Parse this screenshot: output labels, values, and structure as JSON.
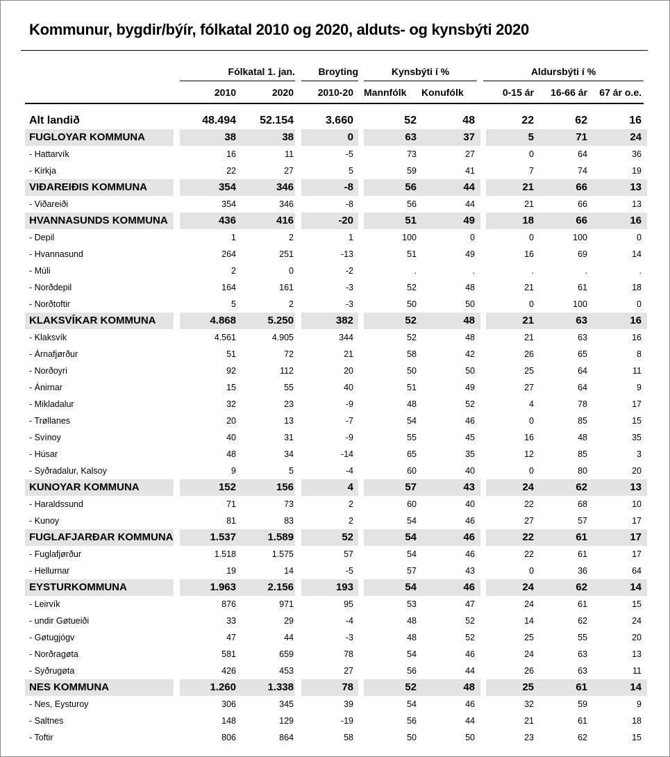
{
  "title": "Kommunur, bygdir/býír, fólkatal 2010 og 2020, alduts- og kynsbýti 2020",
  "header": {
    "groups": {
      "folkatal": "Fólkatal 1. jan.",
      "broyting": "Broyting",
      "kynsbyti": "Kynsbýti í %",
      "aldursbyti": "Aldursbýti í %"
    },
    "columns": [
      "2010",
      "2020",
      "2010-20",
      "Mannfólk",
      "Konufólk",
      "0-15 ár",
      "16-66 ár",
      "67 ár o.e."
    ]
  },
  "rows": [
    {
      "type": "total",
      "label": "Alt landið",
      "values": [
        "48.494",
        "52.154",
        "3.660",
        "52",
        "48",
        "22",
        "62",
        "16"
      ]
    },
    {
      "type": "muni",
      "label": "FUGLOYAR KOMMUNA",
      "values": [
        "38",
        "38",
        "0",
        "63",
        "37",
        "5",
        "71",
        "24"
      ]
    },
    {
      "type": "place",
      "label": "- Hattarvík",
      "values": [
        "16",
        "11",
        "-5",
        "73",
        "27",
        "0",
        "64",
        "36"
      ]
    },
    {
      "type": "place",
      "label": "- Kirkja",
      "values": [
        "22",
        "27",
        "5",
        "59",
        "41",
        "7",
        "74",
        "19"
      ]
    },
    {
      "type": "muni",
      "label": "VIÐAREIÐIS KOMMUNA",
      "values": [
        "354",
        "346",
        "-8",
        "56",
        "44",
        "21",
        "66",
        "13"
      ]
    },
    {
      "type": "place",
      "label": "- Viðareiði",
      "values": [
        "354",
        "346",
        "-8",
        "56",
        "44",
        "21",
        "66",
        "13"
      ]
    },
    {
      "type": "muni",
      "label": "HVANNASUNDS KOMMUNA",
      "values": [
        "436",
        "416",
        "-20",
        "51",
        "49",
        "18",
        "66",
        "16"
      ]
    },
    {
      "type": "place",
      "label": "- Depil",
      "values": [
        "1",
        "2",
        "1",
        "100",
        "0",
        "0",
        "100",
        "0"
      ]
    },
    {
      "type": "place",
      "label": "- Hvannasund",
      "values": [
        "264",
        "251",
        "-13",
        "51",
        "49",
        "16",
        "69",
        "14"
      ]
    },
    {
      "type": "place",
      "label": "- Múli",
      "values": [
        "2",
        "0",
        "-2",
        ".",
        ".",
        ".",
        ".",
        "."
      ]
    },
    {
      "type": "place",
      "label": "- Norðdepil",
      "values": [
        "164",
        "161",
        "-3",
        "52",
        "48",
        "21",
        "61",
        "18"
      ]
    },
    {
      "type": "place",
      "label": "- Norðtoftir",
      "values": [
        "5",
        "2",
        "-3",
        "50",
        "50",
        "0",
        "100",
        "0"
      ]
    },
    {
      "type": "muni",
      "label": "KLAKSVÍKAR KOMMUNA",
      "values": [
        "4.868",
        "5.250",
        "382",
        "52",
        "48",
        "21",
        "63",
        "16"
      ]
    },
    {
      "type": "place",
      "label": "- Klaksvík",
      "values": [
        "4.561",
        "4.905",
        "344",
        "52",
        "48",
        "21",
        "63",
        "16"
      ]
    },
    {
      "type": "place",
      "label": "- Árnafjørður",
      "values": [
        "51",
        "72",
        "21",
        "58",
        "42",
        "26",
        "65",
        "8"
      ]
    },
    {
      "type": "place",
      "label": "- Norðoyri",
      "values": [
        "92",
        "112",
        "20",
        "50",
        "50",
        "25",
        "64",
        "11"
      ]
    },
    {
      "type": "place",
      "label": "- Ánirnar",
      "values": [
        "15",
        "55",
        "40",
        "51",
        "49",
        "27",
        "64",
        "9"
      ]
    },
    {
      "type": "place",
      "label": "- Mikladalur",
      "values": [
        "32",
        "23",
        "-9",
        "48",
        "52",
        "4",
        "78",
        "17"
      ]
    },
    {
      "type": "place",
      "label": "- Trøllanes",
      "values": [
        "20",
        "13",
        "-7",
        "54",
        "46",
        "0",
        "85",
        "15"
      ]
    },
    {
      "type": "place",
      "label": "- Svínoy",
      "values": [
        "40",
        "31",
        "-9",
        "55",
        "45",
        "16",
        "48",
        "35"
      ]
    },
    {
      "type": "place",
      "label": "- Húsar",
      "values": [
        "48",
        "34",
        "-14",
        "65",
        "35",
        "12",
        "85",
        "3"
      ]
    },
    {
      "type": "place",
      "label": "- Syðradalur, Kalsoy",
      "values": [
        "9",
        "5",
        "-4",
        "60",
        "40",
        "0",
        "80",
        "20"
      ]
    },
    {
      "type": "muni",
      "label": "KUNOYAR KOMMUNA",
      "values": [
        "152",
        "156",
        "4",
        "57",
        "43",
        "24",
        "62",
        "13"
      ]
    },
    {
      "type": "place",
      "label": "- Haraldssund",
      "values": [
        "71",
        "73",
        "2",
        "60",
        "40",
        "22",
        "68",
        "10"
      ]
    },
    {
      "type": "place",
      "label": "- Kunoy",
      "values": [
        "81",
        "83",
        "2",
        "54",
        "46",
        "27",
        "57",
        "17"
      ]
    },
    {
      "type": "muni",
      "label": "FUGLAFJARÐAR KOMMUNA",
      "values": [
        "1.537",
        "1.589",
        "52",
        "54",
        "46",
        "22",
        "61",
        "17"
      ]
    },
    {
      "type": "place",
      "label": "- Fuglafjørður",
      "values": [
        "1.518",
        "1.575",
        "57",
        "54",
        "46",
        "22",
        "61",
        "17"
      ]
    },
    {
      "type": "place",
      "label": "- Hellurnar",
      "values": [
        "19",
        "14",
        "-5",
        "57",
        "43",
        "0",
        "36",
        "64"
      ]
    },
    {
      "type": "muni",
      "label": "EYSTURKOMMUNA",
      "values": [
        "1.963",
        "2.156",
        "193",
        "54",
        "46",
        "24",
        "62",
        "14"
      ]
    },
    {
      "type": "place",
      "label": "- Leirvík",
      "values": [
        "876",
        "971",
        "95",
        "53",
        "47",
        "24",
        "61",
        "15"
      ]
    },
    {
      "type": "place",
      "label": "- undir Gøtueiði",
      "values": [
        "33",
        "29",
        "-4",
        "48",
        "52",
        "14",
        "62",
        "24"
      ]
    },
    {
      "type": "place",
      "label": "- Gøtugjógv",
      "values": [
        "47",
        "44",
        "-3",
        "48",
        "52",
        "25",
        "55",
        "20"
      ]
    },
    {
      "type": "place",
      "label": "- Norðragøta",
      "values": [
        "581",
        "659",
        "78",
        "54",
        "46",
        "24",
        "63",
        "13"
      ]
    },
    {
      "type": "place",
      "label": "- Syðrugøta",
      "values": [
        "426",
        "453",
        "27",
        "56",
        "44",
        "26",
        "63",
        "11"
      ]
    },
    {
      "type": "muni",
      "label": "NES KOMMUNA",
      "values": [
        "1.260",
        "1.338",
        "78",
        "52",
        "48",
        "25",
        "61",
        "14"
      ]
    },
    {
      "type": "place",
      "label": "- Nes, Eysturoy",
      "values": [
        "306",
        "345",
        "39",
        "54",
        "46",
        "32",
        "59",
        "9"
      ]
    },
    {
      "type": "place",
      "label": "- Saltnes",
      "values": [
        "148",
        "129",
        "-19",
        "56",
        "44",
        "21",
        "61",
        "18"
      ]
    },
    {
      "type": "place",
      "label": "- Toftir",
      "values": [
        "806",
        "864",
        "58",
        "50",
        "50",
        "23",
        "62",
        "15"
      ]
    }
  ]
}
